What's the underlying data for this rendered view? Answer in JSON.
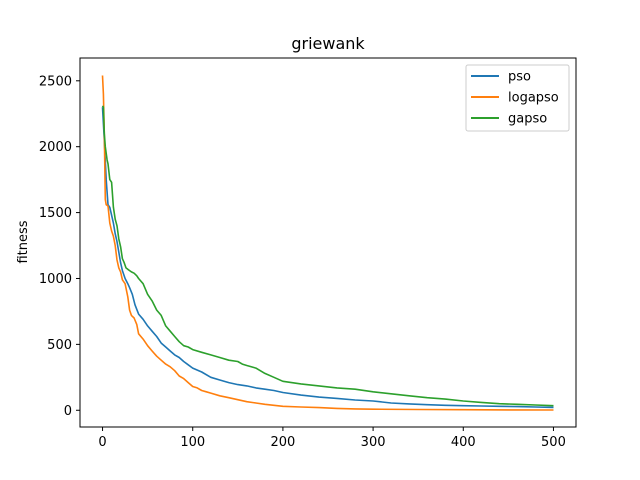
{
  "chart_data": {
    "type": "line",
    "title": "griewank",
    "xlabel": "",
    "ylabel": "fitness",
    "xlim": [
      -25,
      525
    ],
    "ylim": [
      -127,
      2673
    ],
    "xticks": [
      0,
      100,
      200,
      300,
      400,
      500
    ],
    "yticks": [
      0,
      500,
      1000,
      1500,
      2000,
      2500
    ],
    "grid": false,
    "legend_position": "top-right",
    "series": [
      {
        "name": "pso",
        "color": "#1f77b4",
        "x": [
          0,
          2,
          4,
          6,
          8,
          10,
          12,
          14,
          16,
          18,
          20,
          22,
          25,
          28,
          30,
          33,
          36,
          40,
          45,
          50,
          55,
          60,
          65,
          70,
          75,
          80,
          85,
          90,
          95,
          100,
          110,
          120,
          130,
          140,
          150,
          160,
          170,
          180,
          190,
          200,
          220,
          240,
          260,
          280,
          300,
          320,
          340,
          360,
          380,
          400,
          420,
          440,
          460,
          480,
          500
        ],
        "y": [
          2300,
          2050,
          1750,
          1560,
          1540,
          1480,
          1420,
          1340,
          1280,
          1200,
          1120,
          1060,
          1000,
          960,
          930,
          880,
          800,
          730,
          690,
          640,
          600,
          560,
          510,
          480,
          450,
          420,
          400,
          370,
          345,
          320,
          290,
          250,
          230,
          210,
          195,
          185,
          170,
          160,
          150,
          135,
          115,
          100,
          90,
          78,
          70,
          55,
          48,
          42,
          38,
          35,
          32,
          30,
          28,
          25,
          22
        ]
      },
      {
        "name": "logapso",
        "color": "#ff7f0e",
        "x": [
          0,
          1,
          2,
          3,
          4,
          6,
          8,
          10,
          12,
          14,
          16,
          18,
          20,
          22,
          25,
          28,
          30,
          32,
          35,
          38,
          40,
          45,
          50,
          55,
          60,
          65,
          70,
          75,
          80,
          85,
          90,
          95,
          100,
          105,
          110,
          115,
          120,
          130,
          140,
          150,
          160,
          170,
          180,
          190,
          200,
          220,
          240,
          260,
          280,
          300,
          350,
          400,
          450,
          500
        ],
        "y": [
          2540,
          2400,
          2100,
          1600,
          1560,
          1550,
          1420,
          1360,
          1320,
          1250,
          1140,
          1080,
          1050,
          990,
          960,
          860,
          760,
          720,
          700,
          650,
          580,
          540,
          490,
          450,
          410,
          380,
          350,
          330,
          300,
          260,
          240,
          210,
          180,
          170,
          150,
          140,
          130,
          110,
          95,
          80,
          65,
          55,
          45,
          38,
          30,
          25,
          20,
          14,
          10,
          8,
          6,
          4,
          3,
          2
        ]
      },
      {
        "name": "gapso",
        "color": "#2ca02c",
        "x": [
          0,
          1,
          2,
          3,
          4,
          5,
          6,
          8,
          10,
          12,
          14,
          16,
          18,
          20,
          22,
          24,
          26,
          28,
          30,
          32,
          35,
          38,
          40,
          45,
          50,
          55,
          60,
          65,
          70,
          75,
          80,
          85,
          90,
          95,
          100,
          110,
          120,
          130,
          140,
          150,
          155,
          160,
          170,
          180,
          190,
          200,
          220,
          240,
          260,
          280,
          300,
          320,
          340,
          360,
          380,
          400,
          420,
          440,
          460,
          480,
          500
        ],
        "y": [
          2310,
          2300,
          2100,
          2000,
          1950,
          1900,
          1870,
          1750,
          1730,
          1540,
          1450,
          1400,
          1300,
          1240,
          1150,
          1120,
          1080,
          1070,
          1060,
          1050,
          1040,
          1020,
          1000,
          960,
          880,
          830,
          760,
          720,
          640,
          600,
          560,
          520,
          490,
          480,
          460,
          440,
          420,
          400,
          380,
          370,
          350,
          340,
          320,
          280,
          250,
          220,
          200,
          185,
          170,
          160,
          140,
          125,
          110,
          95,
          85,
          70,
          60,
          50,
          45,
          40,
          35
        ]
      }
    ]
  }
}
